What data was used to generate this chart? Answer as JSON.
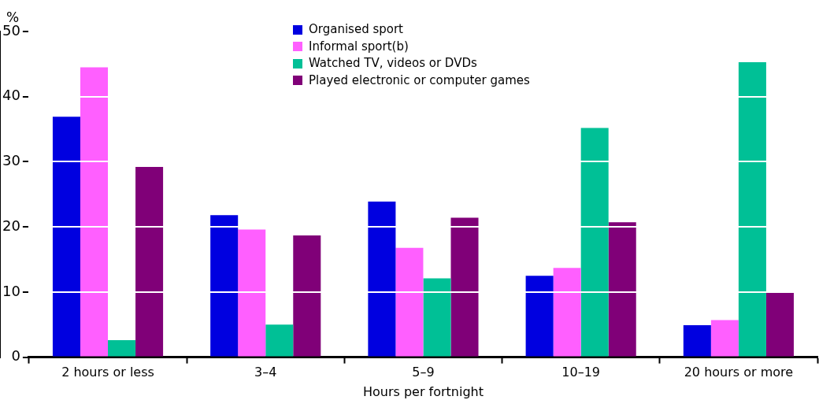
{
  "chart_data": {
    "type": "bar",
    "xlabel": "Hours per fortnight",
    "ylabel": "%",
    "categories": [
      "2 hours or less",
      "3–4",
      "5–9",
      "10–19",
      "20 hours or more"
    ],
    "series": [
      {
        "name": "Organised sport",
        "color": "#0000e0",
        "values": [
          36.9,
          21.8,
          23.9,
          12.5,
          4.9
        ]
      },
      {
        "name": "Informal sport(b)",
        "color": "#ff5fff",
        "values": [
          44.5,
          19.6,
          16.8,
          13.7,
          5.7
        ]
      },
      {
        "name": "Watched TV, videos or DVDs",
        "color": "#00c096",
        "values": [
          2.6,
          5.0,
          12.1,
          35.2,
          45.3
        ]
      },
      {
        "name": "Played electronic or computer games",
        "color": "#800078",
        "values": [
          29.2,
          18.7,
          21.4,
          20.7,
          9.9
        ]
      }
    ],
    "ylim": [
      0,
      50
    ],
    "yticks": [
      0,
      10,
      20,
      30,
      40,
      50
    ],
    "grid": "y",
    "legend": "top"
  }
}
